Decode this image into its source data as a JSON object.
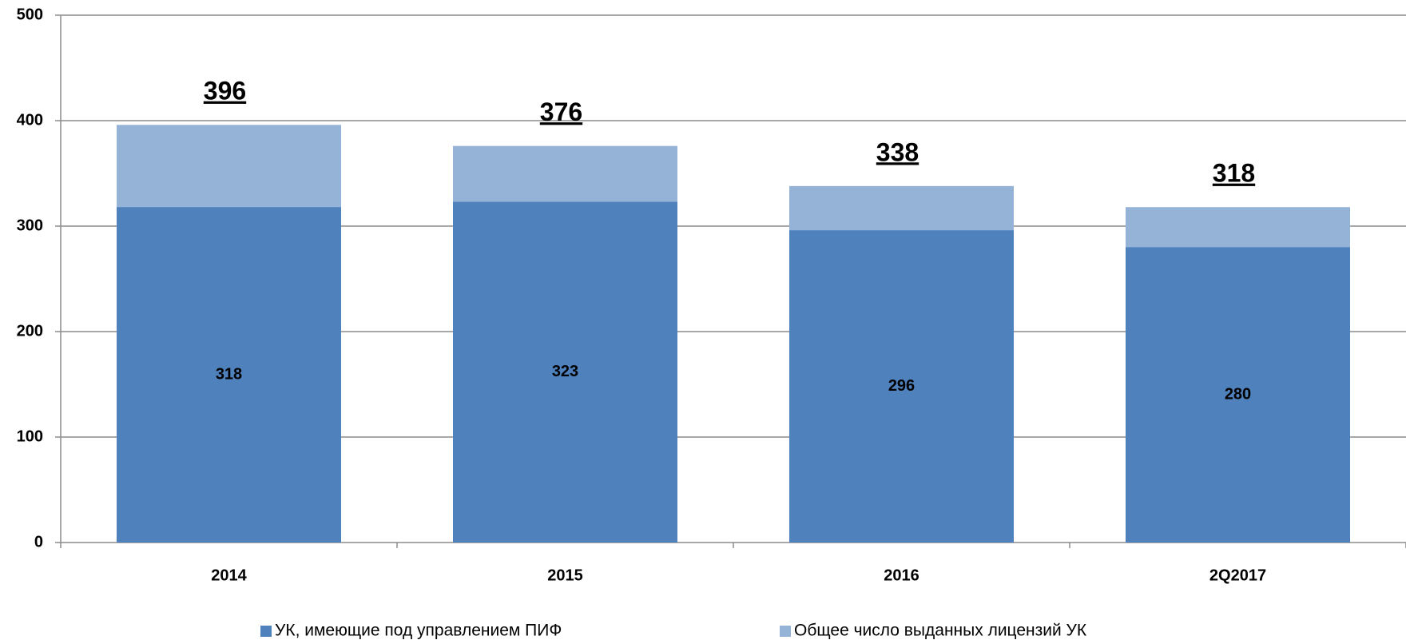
{
  "chart_data": {
    "type": "bar",
    "bar_mode": "overlap",
    "categories": [
      "2014",
      "2015",
      "2016",
      "2Q2017"
    ],
    "series": [
      {
        "name": "УК, имеющие под управлением ПИФ",
        "color": "#4f81bd",
        "values": [
          318,
          323,
          296,
          280
        ]
      },
      {
        "name": "Общее число выданных лицензий УК",
        "color": "#95b3d7",
        "values": [
          396,
          376,
          338,
          318
        ]
      }
    ],
    "ylim": [
      0,
      500
    ],
    "yticks": [
      0,
      100,
      200,
      300,
      400,
      500
    ],
    "grid": true,
    "legend": "bottom"
  }
}
